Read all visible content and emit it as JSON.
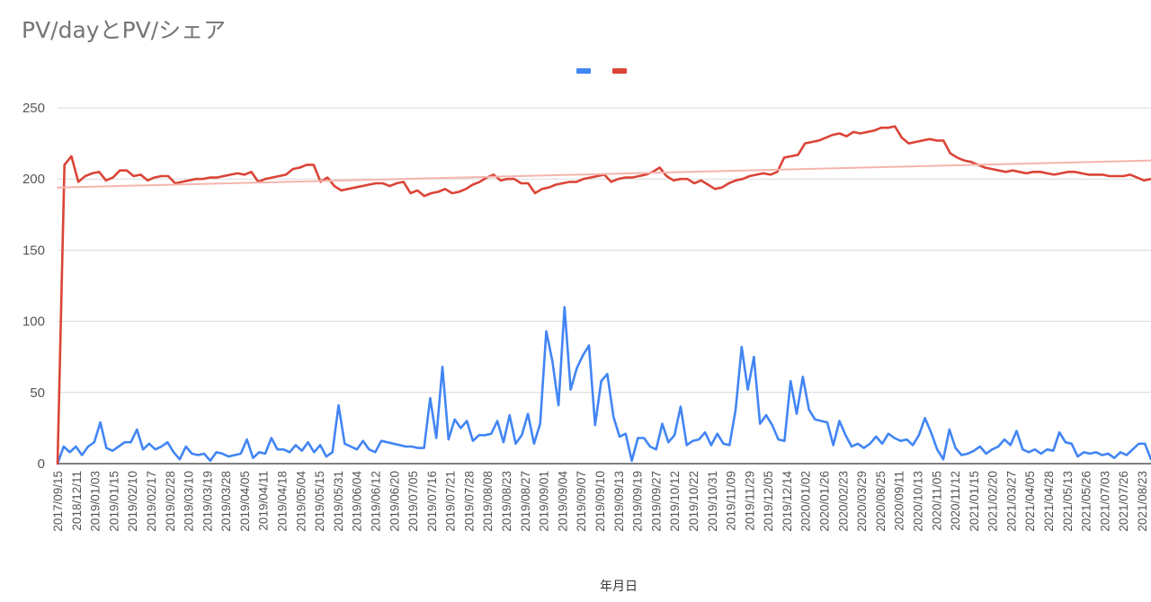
{
  "chart_data": {
    "type": "line",
    "title": "PV/dayとPV/シェア",
    "xlabel": "年月日",
    "ylabel": "",
    "ylim": [
      0,
      250
    ],
    "yticks": [
      0,
      50,
      100,
      150,
      200,
      250
    ],
    "grid": true,
    "legend": "top-center",
    "x_tick_labels": [
      "2017/09/15",
      "2018/12/11",
      "2019/01/03",
      "2019/01/15",
      "2019/02/10",
      "2019/02/17",
      "2019/02/28",
      "2019/03/10",
      "2019/03/19",
      "2019/03/28",
      "2019/04/05",
      "2019/04/11",
      "2019/04/18",
      "2019/05/04",
      "2019/05/15",
      "2019/05/31",
      "2019/06/04",
      "2019/06/12",
      "2019/06/20",
      "2019/07/05",
      "2019/07/16",
      "2019/07/21",
      "2019/07/28",
      "2019/08/08",
      "2019/08/23",
      "2019/08/27",
      "2019/09/01",
      "2019/09/04",
      "2019/09/07",
      "2019/09/10",
      "2019/09/13",
      "2019/09/19",
      "2019/09/27",
      "2019/10/12",
      "2019/10/22",
      "2019/10/31",
      "2019/11/09",
      "2019/11/29",
      "2019/12/05",
      "2019/12/14",
      "2020/01/02",
      "2020/01/26",
      "2020/02/23",
      "2020/03/29",
      "2020/08/25",
      "2020/09/11",
      "2020/10/13",
      "2020/11/05",
      "2020/11/12",
      "2021/01/15",
      "2021/02/20",
      "2021/03/27",
      "2021/04/05",
      "2021/04/28",
      "2021/05/13",
      "2021/05/26",
      "2021/07/03",
      "2021/07/26",
      "2021/08/23"
    ],
    "series": [
      {
        "color": "#4285f4",
        "values": [
          0,
          12,
          8,
          12,
          6,
          12,
          15,
          29,
          11,
          9,
          12,
          15,
          15,
          24,
          10,
          14,
          10,
          12,
          15,
          8,
          3,
          12,
          7,
          6,
          7,
          2,
          8,
          7,
          5,
          6,
          7,
          17,
          4,
          8,
          7,
          18,
          10,
          10,
          8,
          13,
          9,
          15,
          8,
          13,
          5,
          8,
          41,
          14,
          12,
          10,
          16,
          10,
          8,
          16,
          15,
          14,
          13,
          12,
          12,
          11,
          11,
          46,
          18,
          68,
          17,
          31,
          25,
          30,
          16,
          20,
          20,
          21,
          30,
          15,
          34,
          14,
          20,
          35,
          14,
          28,
          93,
          72,
          41,
          110,
          52,
          67,
          76,
          83,
          27,
          58,
          63,
          33,
          19,
          21,
          2,
          18,
          18,
          12,
          10,
          28,
          15,
          20,
          40,
          13,
          16,
          17,
          22,
          13,
          21,
          14,
          13,
          38,
          82,
          52,
          75,
          28,
          34,
          27,
          17,
          16,
          58,
          35,
          61,
          38,
          31,
          30,
          29,
          13,
          30,
          20,
          12,
          14,
          11,
          14,
          19,
          14,
          21,
          18,
          16,
          17,
          13,
          20,
          32,
          22,
          10,
          3,
          24,
          11,
          6,
          7,
          9,
          12,
          7,
          10,
          12,
          17,
          13,
          23,
          10,
          8,
          10,
          7,
          10,
          9,
          22,
          15,
          14,
          5,
          8,
          7,
          8,
          6,
          7,
          4,
          8,
          6,
          10,
          14,
          14,
          3
        ]
      },
      {
        "color": "#db4437",
        "values": [
          0,
          210,
          216,
          198,
          202,
          204,
          205,
          199,
          201,
          206,
          206,
          202,
          203,
          199,
          201,
          202,
          202,
          197,
          198,
          199,
          200,
          200,
          201,
          201,
          202,
          203,
          204,
          203,
          205,
          198,
          200,
          201,
          202,
          203,
          207,
          208,
          210,
          210,
          198,
          201,
          195,
          192,
          193,
          194,
          195,
          196,
          197,
          197,
          195,
          197,
          198,
          190,
          192,
          188,
          190,
          191,
          193,
          190,
          191,
          193,
          196,
          198,
          201,
          203,
          199,
          200,
          200,
          197,
          197,
          190,
          193,
          194,
          196,
          197,
          198,
          198,
          200,
          201,
          202,
          203,
          198,
          200,
          201,
          201,
          202,
          203,
          205,
          208,
          202,
          199,
          200,
          200,
          197,
          199,
          196,
          193,
          194,
          197,
          199,
          200,
          202,
          203,
          204,
          203,
          205,
          215,
          216,
          217,
          225,
          226,
          227,
          229,
          231,
          232,
          230,
          233,
          232,
          233,
          234,
          236,
          236,
          237,
          229,
          225,
          226,
          227,
          228,
          227,
          227,
          218,
          215,
          213,
          212,
          210,
          208,
          207,
          206,
          205,
          206,
          205,
          204,
          205,
          205,
          204,
          203,
          204,
          205,
          205,
          204,
          203,
          203,
          203,
          202,
          202,
          202,
          203,
          201,
          199,
          200
        ]
      },
      {
        "color": "#f4b4ad",
        "values": [
          194,
          213
        ]
      }
    ]
  }
}
